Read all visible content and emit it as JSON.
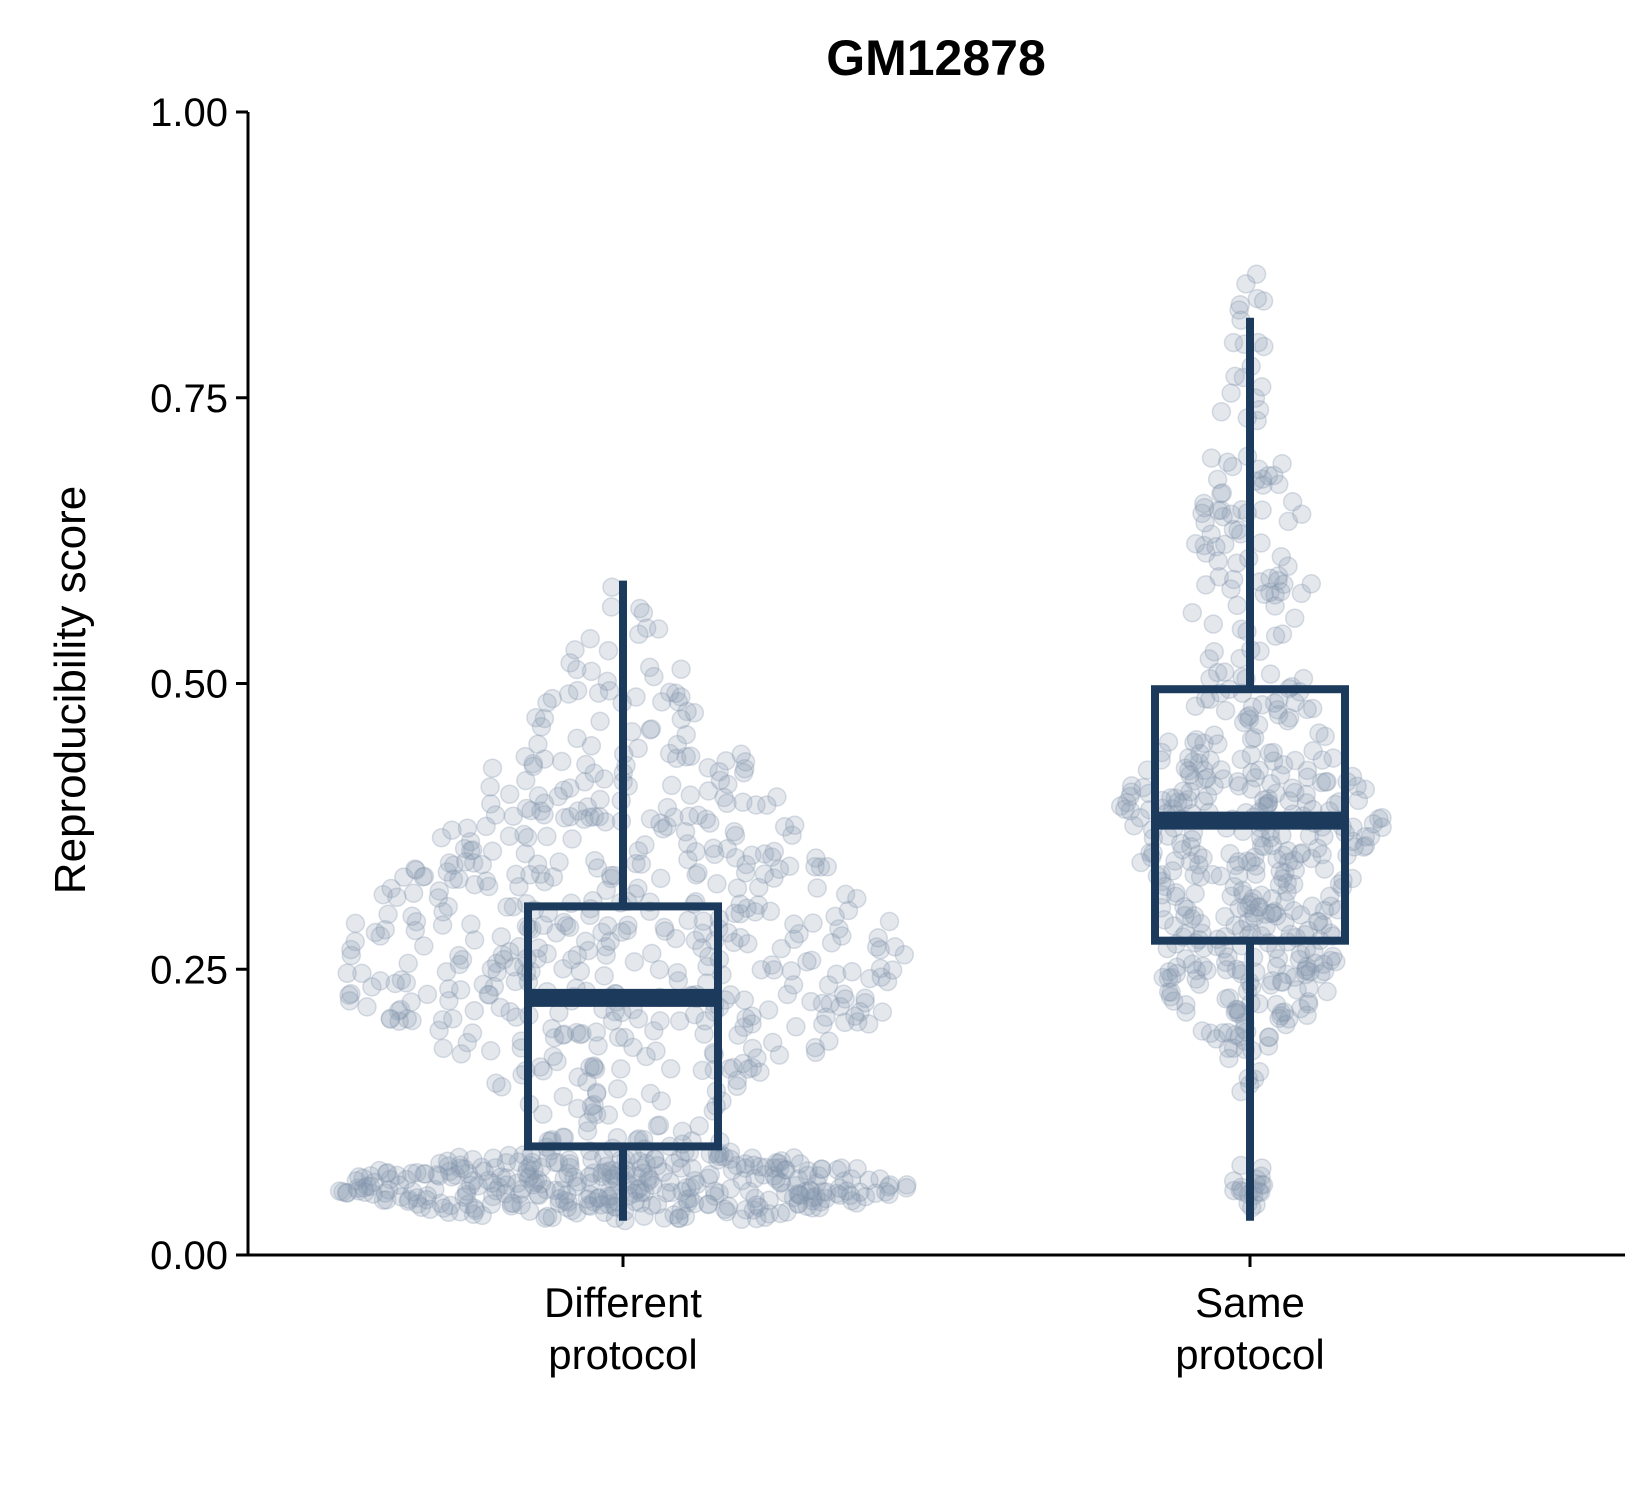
{
  "chart_data": {
    "type": "box",
    "title": "GM12878",
    "xlabel": "",
    "ylabel": "Reproducibility score",
    "ylim": [
      0,
      1
    ],
    "yticks": [
      "0.00",
      "0.25",
      "0.50",
      "0.75",
      "1.00"
    ],
    "ytick_values": [
      0,
      0.25,
      0.5,
      0.75,
      1.0
    ],
    "grid": false,
    "legend": "none",
    "colors": {
      "box": "#1b3a5c",
      "points": "#8595ab"
    },
    "categories": [
      {
        "label_lines": [
          "Different",
          "protocol"
        ],
        "whisker_low": 0.03,
        "q1": 0.095,
        "median": 0.225,
        "q3": 0.305,
        "whisker_high": 0.59,
        "point_range": [
          0.03,
          0.59
        ]
      },
      {
        "label_lines": [
          "Same",
          "protocol"
        ],
        "whisker_low": 0.03,
        "q1": 0.275,
        "median": 0.38,
        "q3": 0.495,
        "whisker_high": 0.82,
        "point_range": [
          0.03,
          0.91
        ]
      }
    ]
  }
}
